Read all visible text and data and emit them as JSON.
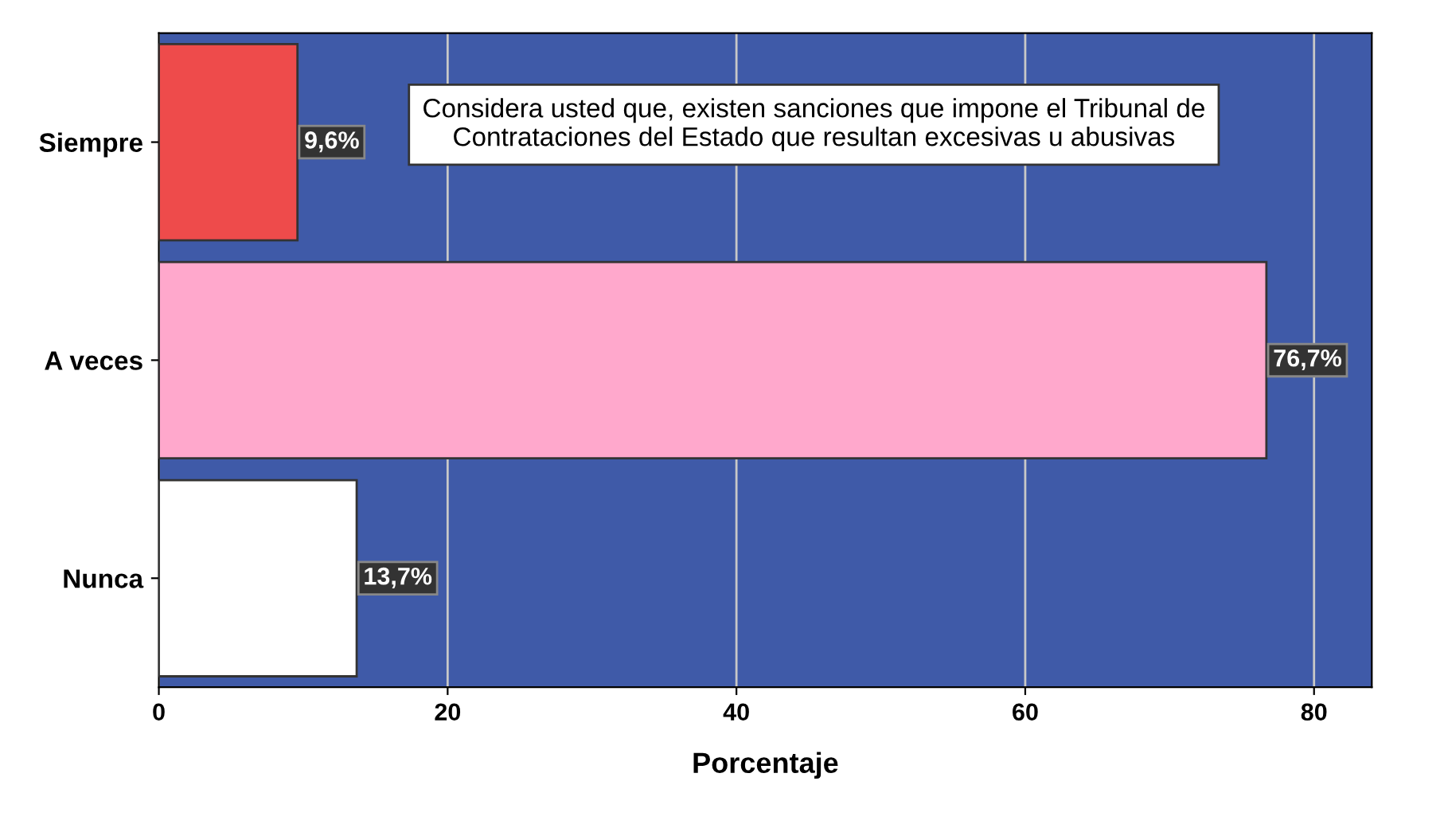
{
  "chart_data": {
    "type": "bar",
    "orientation": "horizontal",
    "categories": [
      "Siempre",
      "A veces",
      "Nunca"
    ],
    "values": [
      9.6,
      76.7,
      13.7
    ],
    "colors": [
      "#ee4b4b",
      "#ffa8cc",
      "#ffffff"
    ],
    "value_labels": [
      "9,6%",
      "76,7%",
      "13,7%"
    ],
    "xlabel": "Porcentaje",
    "xlim": [
      0,
      84
    ],
    "xticks": [
      0,
      20,
      40,
      60,
      80
    ],
    "grid": "x",
    "annotations": [
      "Considera usted que, existen sanciones que impone el Tribunal de Contrataciones del Estado que resultan excesivas u abusivas"
    ]
  }
}
